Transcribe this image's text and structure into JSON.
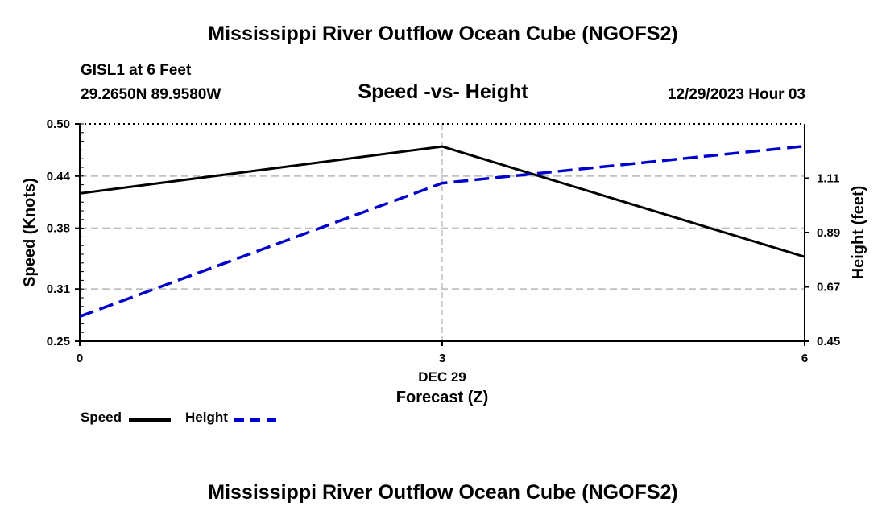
{
  "header": {
    "title": "Mississippi River Outflow Ocean Cube (NGOFS2)",
    "station": "GISL1 at 6 Feet",
    "coordinates": "29.2650N  89.9580W",
    "subtitle": "Speed -vs- Height",
    "date_hour": "12/29/2023 Hour 03"
  },
  "footer": {
    "title": "Mississippi River Outflow Ocean Cube (NGOFS2)"
  },
  "colors": {
    "speed": "#000000",
    "height": "#0000cc",
    "grid": "#c0c0c0"
  },
  "chart_data": {
    "type": "line",
    "title": "Speed -vs- Height",
    "xlabel": "Forecast (Z)",
    "x_date_label": "DEC 29",
    "ylabel_left": "Speed (Knots)",
    "ylabel_right": "Height (feet)",
    "x": [
      0,
      3,
      6
    ],
    "x_ticks": [
      "0",
      "3",
      "6"
    ],
    "xlim": [
      0,
      6
    ],
    "ylim_left": [
      0.25,
      0.5
    ],
    "ylim_right": [
      0.45,
      1.33
    ],
    "y_ticks_left": [
      "0.50",
      "0.44",
      "0.38",
      "0.31",
      "0.25"
    ],
    "y_ticks_right": [
      "1.11",
      "0.89",
      "0.67",
      "0.45"
    ],
    "series": [
      {
        "name": "Speed",
        "axis": "left",
        "style": "solid",
        "values": [
          0.42,
          0.474,
          0.347
        ]
      },
      {
        "name": "Height",
        "axis": "right",
        "style": "dashed",
        "values": [
          0.55,
          1.09,
          1.24
        ]
      }
    ],
    "legend": [
      "Speed",
      "Height"
    ]
  }
}
